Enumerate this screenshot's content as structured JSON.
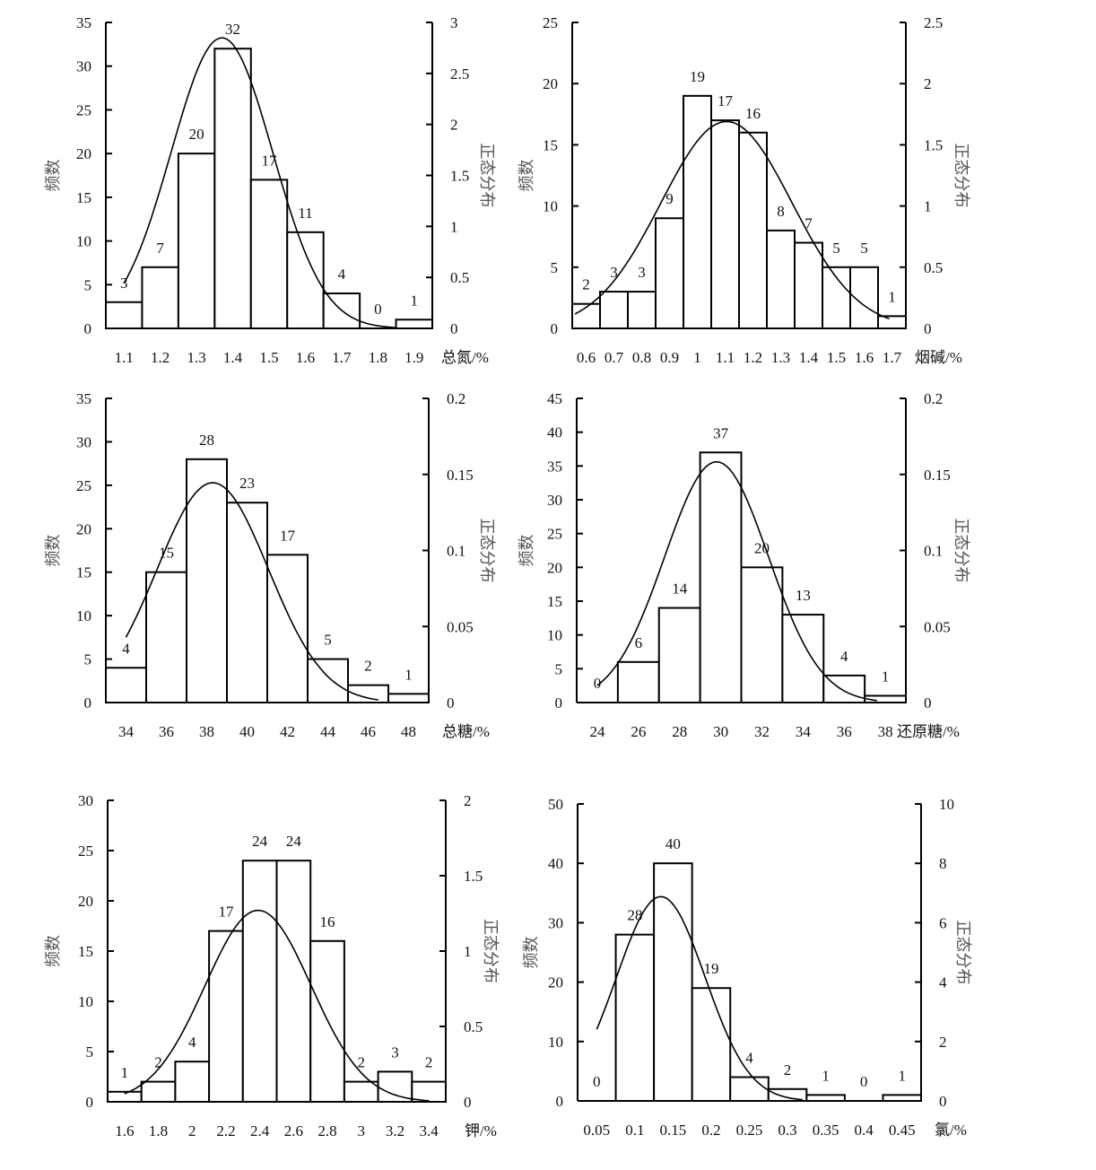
{
  "y_left_title": "频数",
  "y_right_title": "正态分布",
  "chart_data": [
    {
      "type": "bar",
      "xlabel": "总氮/%",
      "categories": [
        "1.1",
        "1.2",
        "1.3",
        "1.4",
        "1.5",
        "1.6",
        "1.7",
        "1.8",
        "1.9"
      ],
      "values": [
        3,
        7,
        20,
        32,
        17,
        11,
        4,
        0,
        1
      ],
      "ylim": [
        0,
        35
      ],
      "yticks": [
        0,
        5,
        10,
        15,
        20,
        25,
        30,
        35
      ],
      "ylim_right": [
        0,
        3
      ],
      "yticks_right": [
        "0",
        "0.5",
        "1",
        "1.5",
        "2",
        "2.5",
        "3"
      ],
      "curve": {
        "type": "normal",
        "mean": 1.37,
        "sd": 0.14,
        "x_range": [
          1.1,
          1.85
        ]
      }
    },
    {
      "type": "bar",
      "xlabel": "烟碱/%",
      "categories": [
        "0.6",
        "0.7",
        "0.8",
        "0.9",
        "1",
        "1.1",
        "1.2",
        "1.3",
        "1.4",
        "1.5",
        "1.6",
        "1.7"
      ],
      "values": [
        2,
        3,
        3,
        9,
        19,
        17,
        16,
        8,
        7,
        5,
        5,
        1
      ],
      "ylim": [
        0,
        25
      ],
      "yticks": [
        0,
        5,
        10,
        15,
        20,
        25
      ],
      "ylim_right": [
        0,
        2.5
      ],
      "yticks_right": [
        "0",
        "0.5",
        "1",
        "1.5",
        "2",
        "2.5"
      ],
      "curve": {
        "type": "normal",
        "mean": 1.105,
        "sd": 0.236,
        "x_range": [
          0.56,
          1.69
        ]
      }
    },
    {
      "type": "bar",
      "xlabel": "总糖/%",
      "categories": [
        "34",
        "36",
        "38",
        "40",
        "42",
        "44",
        "46",
        "48"
      ],
      "values": [
        4,
        15,
        28,
        23,
        17,
        5,
        2,
        1
      ],
      "ylim": [
        0,
        35
      ],
      "yticks": [
        0,
        5,
        10,
        15,
        20,
        25,
        30,
        35
      ],
      "ylim_right": [
        0,
        0.2
      ],
      "yticks_right": [
        "0",
        "0.05",
        "0.1",
        "0.15",
        "0.2"
      ],
      "curve": {
        "type": "normal",
        "mean": 38.3,
        "sd": 2.76,
        "x_range": [
          34,
          46.5
        ]
      }
    },
    {
      "type": "bar",
      "xlabel": "还原糖/%",
      "categories": [
        "24",
        "26",
        "28",
        "30",
        "32",
        "34",
        "36",
        "38"
      ],
      "values": [
        0,
        6,
        14,
        37,
        20,
        13,
        4,
        1
      ],
      "ylim": [
        0,
        45
      ],
      "yticks": [
        0,
        5,
        10,
        15,
        20,
        25,
        30,
        35,
        40,
        45
      ],
      "ylim_right": [
        0,
        0.2
      ],
      "yticks_right": [
        "0",
        "0.05",
        "0.1",
        "0.15",
        "0.2"
      ],
      "curve": {
        "type": "normal",
        "mean": 29.8,
        "sd": 2.52,
        "x_range": [
          24,
          37.6
        ]
      }
    },
    {
      "type": "bar",
      "xlabel": "钾/%",
      "categories": [
        "1.6",
        "1.8",
        "2",
        "2.2",
        "2.4",
        "2.6",
        "2.8",
        "3",
        "3.2",
        "3.4"
      ],
      "values": [
        1,
        2,
        4,
        17,
        24,
        24,
        16,
        2,
        3,
        2
      ],
      "ylim": [
        0,
        30
      ],
      "yticks": [
        0,
        5,
        10,
        15,
        20,
        25,
        30
      ],
      "ylim_right": [
        0,
        2
      ],
      "yticks_right": [
        "0",
        "0.5",
        "1",
        "1.5",
        "2"
      ],
      "curve": {
        "type": "normal",
        "mean": 2.39,
        "sd": 0.314,
        "x_range": [
          1.6,
          3.4
        ]
      }
    },
    {
      "type": "bar",
      "xlabel": "氯/%",
      "categories": [
        "0.05",
        "0.1",
        "0.15",
        "0.2",
        "0.25",
        "0.3",
        "0.35",
        "0.4",
        "0.45"
      ],
      "values": [
        0,
        28,
        40,
        19,
        4,
        2,
        1,
        0,
        1
      ],
      "ylim": [
        0,
        50
      ],
      "yticks": [
        0,
        10,
        20,
        30,
        40,
        50
      ],
      "ylim_right": [
        0,
        10
      ],
      "yticks_right": [
        "0",
        "2",
        "4",
        "6",
        "8",
        "10"
      ],
      "curve": {
        "type": "normal",
        "mean": 0.134,
        "sd": 0.058,
        "x_range": [
          0.05,
          0.32
        ]
      }
    }
  ]
}
